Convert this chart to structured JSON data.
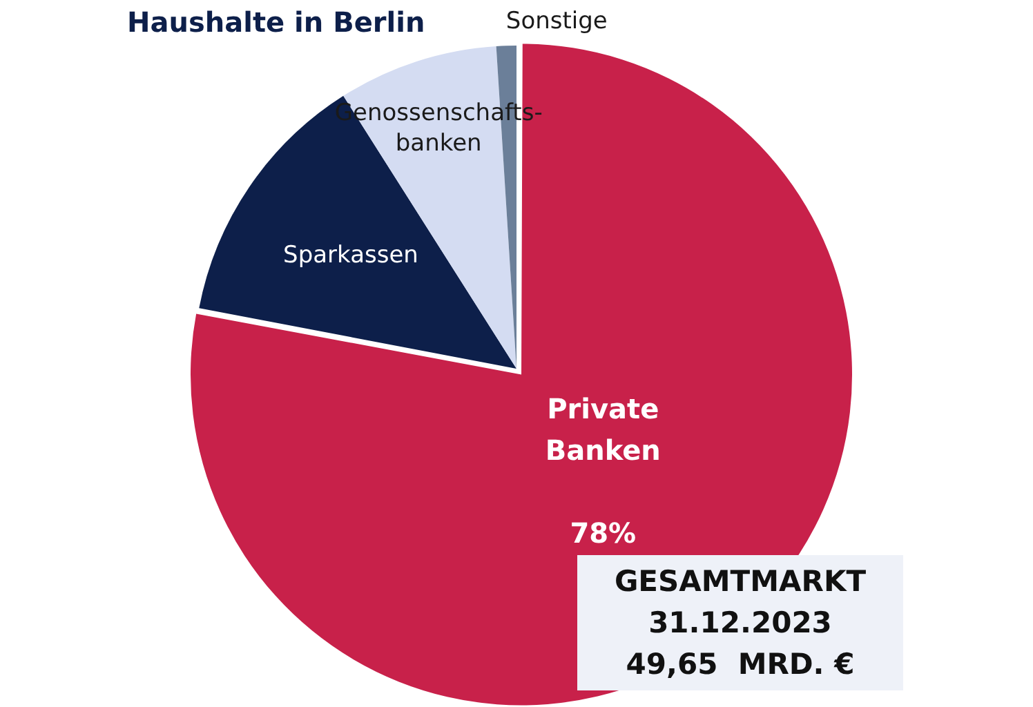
{
  "chart_data": {
    "type": "pie",
    "title": "Haushalte in Berlin",
    "categories": [
      "Private Banken",
      "Sparkassen",
      "Genossenschafts-banken",
      "Sonstige"
    ],
    "values": [
      78,
      13,
      8,
      1
    ],
    "colors": [
      "#c8214a",
      "#0d1f4a",
      "#d4dcf2",
      "#6b7f99"
    ],
    "value_labels": [
      "78%",
      null,
      null,
      null
    ],
    "legend": false,
    "annotations": [
      "GESAMTMARKT",
      "31.12.2023",
      "49,65  MRD. €"
    ]
  }
}
